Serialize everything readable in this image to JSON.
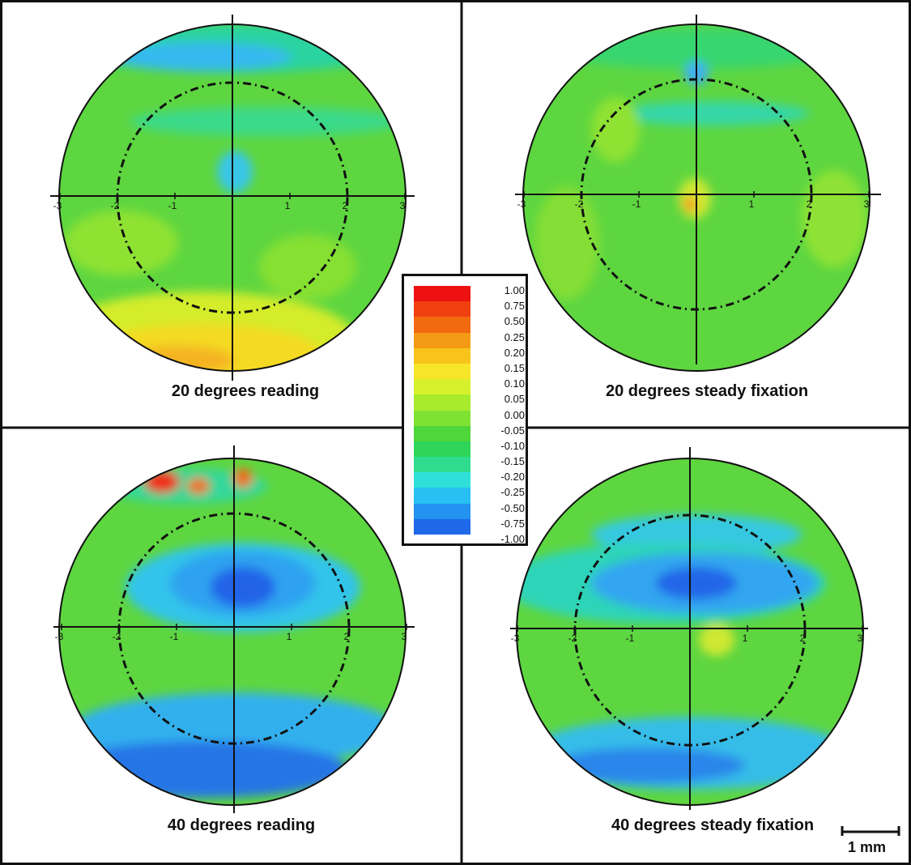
{
  "panels": [
    {
      "id": "p1",
      "title": "20 degrees reading"
    },
    {
      "id": "p2",
      "title": "20 degrees steady fixation"
    },
    {
      "id": "p3",
      "title": "40 degrees reading"
    },
    {
      "id": "p4",
      "title": "40 degrees steady fixation"
    }
  ],
  "axis_ticks": [
    "-3",
    "-2",
    "-1",
    "1",
    "2",
    "3"
  ],
  "legend": {
    "labels": [
      "1.00",
      "0.75",
      "0.50",
      "0.25",
      "0.20",
      "0.15",
      "0.10",
      "0.05",
      "0.00",
      "-0.05",
      "-0.10",
      "-0.15",
      "-0.20",
      "-0.25",
      "-0.50",
      "-0.75",
      "-1.00"
    ],
    "colors": [
      "#ee1111",
      "#f04010",
      "#f26a10",
      "#f59a14",
      "#f8c41c",
      "#f7e52a",
      "#d6f02c",
      "#a8ea2c",
      "#7fe232",
      "#4fd63a",
      "#2ed558",
      "#2fdb8e",
      "#2ee0d8",
      "#28c0f2",
      "#2392f0",
      "#1f68ea"
    ]
  },
  "scale_bar": {
    "label": "1 mm"
  }
}
